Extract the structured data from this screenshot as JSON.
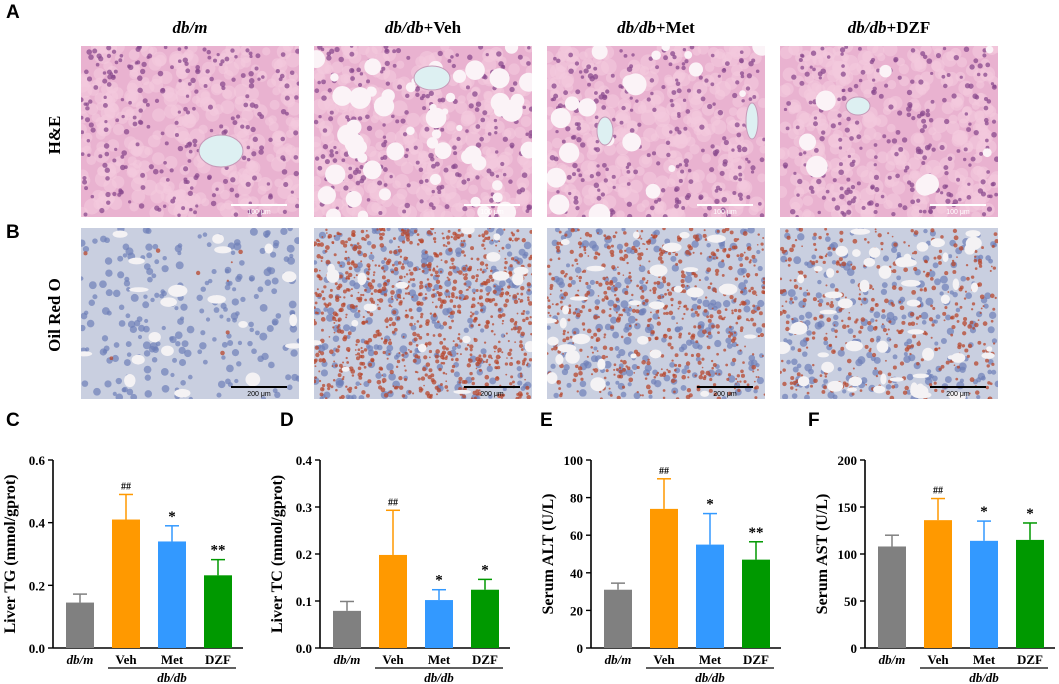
{
  "panel_letters": [
    "A",
    "B",
    "C",
    "D",
    "E",
    "F"
  ],
  "columns": [
    {
      "italic": "db/m",
      "rest": ""
    },
    {
      "italic": "db/db",
      "rest": "+Veh"
    },
    {
      "italic": "db/db",
      "rest": "+Met"
    },
    {
      "italic": "db/db",
      "rest": "+DZF"
    }
  ],
  "rows": {
    "he": "H&E",
    "oil": "Oil Red O"
  },
  "scale_bars": {
    "he": "100 μm",
    "oil": "200 μm"
  },
  "colors": {
    "dbm": "#808080",
    "veh": "#ff9900",
    "met": "#3399ff",
    "dzf": "#009900",
    "he_bg": "#e9b2d0",
    "oil_bg": "#c9cfe0"
  },
  "chart_data": [
    {
      "type": "bar",
      "ylabel": "Liver TG (mmol/gprot)",
      "ylim": [
        0,
        0.6
      ],
      "yticks": [
        "0.0",
        "0.2",
        "0.4",
        "0.6"
      ],
      "categories": [
        "db/m",
        "Veh",
        "Met",
        "DZF"
      ],
      "group_label": "db/db",
      "values": [
        0.145,
        0.41,
        0.34,
        0.232
      ],
      "errors": [
        0.027,
        0.08,
        0.05,
        0.05
      ],
      "marks": [
        "",
        "##",
        "*",
        "**"
      ]
    },
    {
      "type": "bar",
      "ylabel": "Liver TC (mmol/gprot)",
      "ylim": [
        0,
        0.4
      ],
      "yticks": [
        "0.0",
        "0.1",
        "0.2",
        "0.3",
        "0.4"
      ],
      "categories": [
        "db/m",
        "Veh",
        "Met",
        "DZF"
      ],
      "group_label": "db/db",
      "values": [
        0.079,
        0.198,
        0.102,
        0.124
      ],
      "errors": [
        0.02,
        0.095,
        0.022,
        0.022
      ],
      "marks": [
        "",
        "##",
        "*",
        "*"
      ]
    },
    {
      "type": "bar",
      "ylabel": "Serum ALT (U/L)",
      "ylim": [
        0,
        100
      ],
      "yticks": [
        "0",
        "20",
        "40",
        "60",
        "80",
        "100"
      ],
      "categories": [
        "db/m",
        "Veh",
        "Met",
        "DZF"
      ],
      "group_label": "db/db",
      "values": [
        31,
        74,
        55,
        47
      ],
      "errors": [
        3.5,
        16,
        16.5,
        9.5
      ],
      "marks": [
        "",
        "##",
        "*",
        "**"
      ]
    },
    {
      "type": "bar",
      "ylabel": "Serum AST (U/L)",
      "ylim": [
        0,
        200
      ],
      "yticks": [
        "0",
        "50",
        "100",
        "150",
        "200"
      ],
      "categories": [
        "db/m",
        "Veh",
        "Met",
        "DZF"
      ],
      "group_label": "db/db",
      "values": [
        108,
        136,
        114,
        115
      ],
      "errors": [
        12,
        23,
        21,
        18
      ],
      "marks": [
        "",
        "##",
        "*",
        "*"
      ]
    }
  ]
}
